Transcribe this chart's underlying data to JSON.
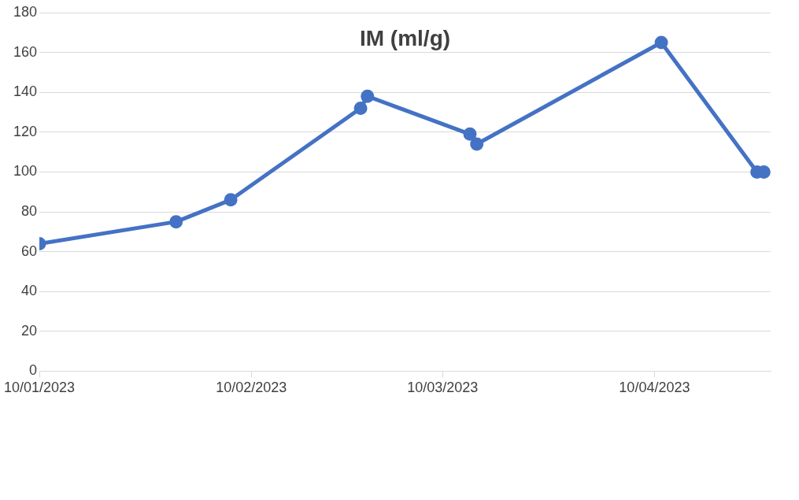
{
  "chart_data": {
    "type": "line",
    "title": "IM (ml/g)",
    "x": [
      "2023-01-10",
      "2023-01-30",
      "2023-02-07",
      "2023-02-26",
      "2023-02-27",
      "2023-03-14",
      "2023-03-15",
      "2023-04-11",
      "2023-04-25",
      "2023-04-26"
    ],
    "series": [
      {
        "color": "#4472c4",
        "values": [
          64,
          75,
          86,
          132,
          138,
          119,
          114,
          165,
          100,
          100
        ]
      }
    ],
    "xlim": [
      "2023-01-10",
      "2023-04-27"
    ],
    "xticks": [
      {
        "value": "2023-01-10",
        "label": "10/01/2023"
      },
      {
        "value": "2023-02-10",
        "label": "10/02/2023"
      },
      {
        "value": "2023-03-10",
        "label": "10/03/2023"
      },
      {
        "value": "2023-04-10",
        "label": "10/04/2023"
      }
    ],
    "ylim": [
      0,
      180
    ],
    "yticks": [
      0,
      20,
      40,
      60,
      80,
      100,
      120,
      140,
      160,
      180
    ],
    "grid": "y",
    "legend": false,
    "marker": "circle",
    "line_style": "solid"
  }
}
